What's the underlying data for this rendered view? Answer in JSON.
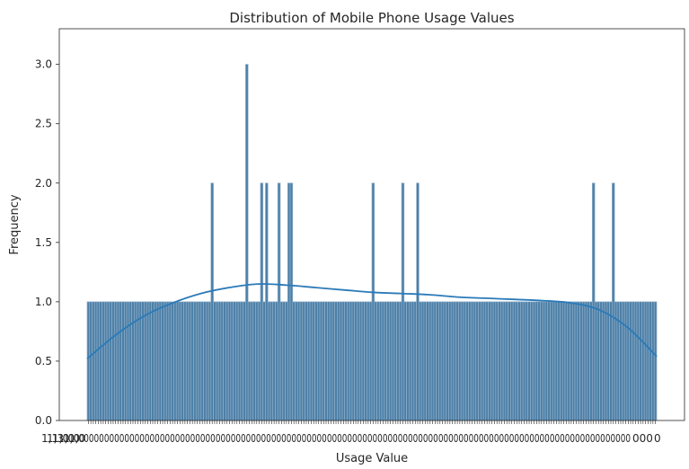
{
  "chart_data": {
    "type": "bar",
    "title": "Distribution of Mobile Phone Usage Values",
    "xlabel": "Usage Value",
    "ylabel": "Frequency",
    "ylim": [
      0,
      3.3
    ],
    "y_ticks": [
      0.0,
      0.5,
      1.0,
      1.5,
      2.0,
      2.5,
      3.0
    ],
    "y_tick_labels": [
      "0.0",
      "0.5",
      "1.0",
      "1.5",
      "2.0",
      "2.5",
      "3.0"
    ],
    "x_tick_labels_visible": [
      "1,1",
      "1,3",
      "1,0",
      "1,0",
      "1,0",
      "1,0"
    ],
    "x_tick_labels_visible_right": [
      "000",
      "0"
    ],
    "grid": false,
    "legend": "none",
    "bar_count": 230,
    "baseline_frequency": 1,
    "peaks": [
      {
        "bin": 50,
        "frequency": 2
      },
      {
        "bin": 64,
        "frequency": 3
      },
      {
        "bin": 70,
        "frequency": 2
      },
      {
        "bin": 72,
        "frequency": 2
      },
      {
        "bin": 77,
        "frequency": 2
      },
      {
        "bin": 81,
        "frequency": 2
      },
      {
        "bin": 82,
        "frequency": 2
      },
      {
        "bin": 115,
        "frequency": 2
      },
      {
        "bin": 127,
        "frequency": 2
      },
      {
        "bin": 133,
        "frequency": 2
      },
      {
        "bin": 204,
        "frequency": 2
      },
      {
        "bin": 212,
        "frequency": 2
      }
    ],
    "kde_curve": {
      "x_fraction": [
        0.0,
        0.05,
        0.1,
        0.15,
        0.2,
        0.25,
        0.3,
        0.35,
        0.4,
        0.45,
        0.5,
        0.55,
        0.6,
        0.65,
        0.7,
        0.75,
        0.8,
        0.85,
        0.9,
        0.95,
        1.0
      ],
      "y": [
        0.52,
        0.72,
        0.88,
        0.99,
        1.07,
        1.12,
        1.15,
        1.14,
        1.12,
        1.1,
        1.08,
        1.07,
        1.06,
        1.04,
        1.03,
        1.02,
        1.01,
        0.99,
        0.93,
        0.78,
        0.54
      ]
    },
    "colors": {
      "bar_fill": "#4d7fa6",
      "bar_stroke": "#8fb0cc",
      "kde_line": "#2a7ab8",
      "axis": "#262626"
    }
  }
}
